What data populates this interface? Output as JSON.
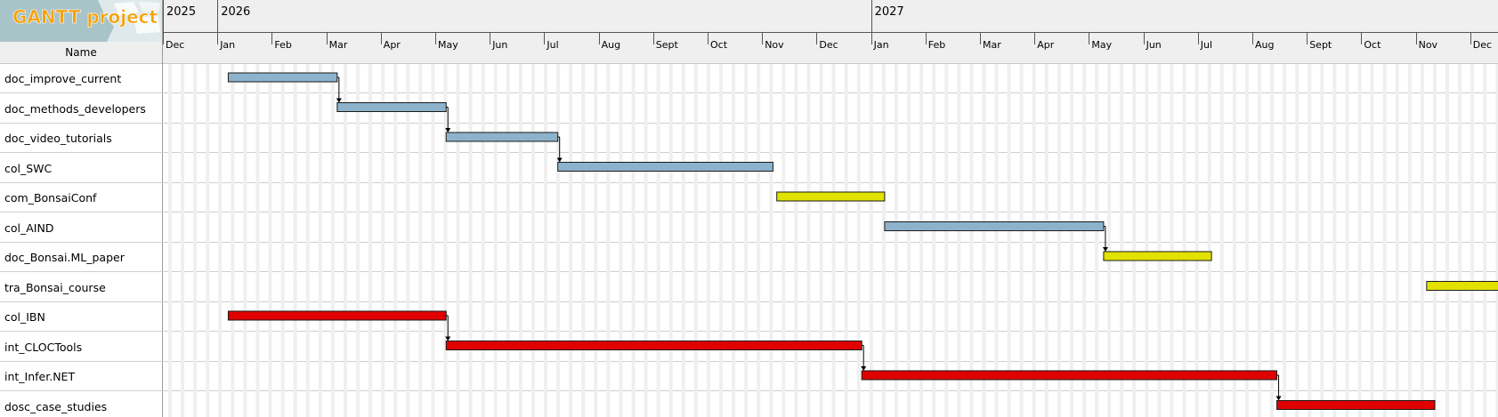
{
  "app": {
    "logo_text": "GANTT project"
  },
  "header": {
    "name_column": "Name"
  },
  "timeline": {
    "years": [
      {
        "label": "2025",
        "month_index": 0
      },
      {
        "label": "2026",
        "month_index": 1
      },
      {
        "label": "2027",
        "month_index": 13
      }
    ],
    "months": [
      "Dec",
      "Jan",
      "Feb",
      "Mar",
      "Apr",
      "May",
      "Jun",
      "Jul",
      "Aug",
      "Sept",
      "Oct",
      "Nov",
      "Dec",
      "Jan",
      "Feb",
      "Mar",
      "Apr",
      "May",
      "Jun",
      "Jul",
      "Aug",
      "Sept",
      "Oct",
      "Nov",
      "Dec"
    ]
  },
  "tasks": [
    {
      "name": "doc_improve_current",
      "start": 1.2,
      "end": 3.2,
      "type": "blue"
    },
    {
      "name": "doc_methods_developers",
      "start": 3.2,
      "end": 5.2,
      "type": "blue"
    },
    {
      "name": "doc_video_tutorials",
      "start": 5.2,
      "end": 7.25,
      "type": "blue"
    },
    {
      "name": "col_SWC",
      "start": 7.25,
      "end": 11.2,
      "type": "blue"
    },
    {
      "name": "com_BonsaiConf",
      "start": 11.27,
      "end": 13.25,
      "type": "yellow"
    },
    {
      "name": "col_AIND",
      "start": 13.25,
      "end": 17.27,
      "type": "blue"
    },
    {
      "name": "doc_Bonsai.ML_paper",
      "start": 17.27,
      "end": 19.25,
      "type": "yellow"
    },
    {
      "name": "tra_Bonsai_course",
      "start": 23.2,
      "end": 25.25,
      "type": "yellow"
    },
    {
      "name": "col_IBN",
      "start": 1.2,
      "end": 5.2,
      "type": "red"
    },
    {
      "name": "int_CLOCTools",
      "start": 5.2,
      "end": 12.83,
      "type": "red"
    },
    {
      "name": "int_Infer.NET",
      "start": 12.83,
      "end": 20.45,
      "type": "red"
    },
    {
      "name": "dosc_case_studies",
      "start": 20.45,
      "end": 23.35,
      "type": "red"
    }
  ],
  "dependencies": [
    [
      0,
      1
    ],
    [
      1,
      2
    ],
    [
      2,
      3
    ],
    [
      5,
      6
    ],
    [
      8,
      9
    ],
    [
      9,
      10
    ],
    [
      10,
      11
    ]
  ],
  "colors": {
    "blue": "#8db3cc",
    "yellow": "#e2e200",
    "red": "#e00000",
    "bar_border": "#1a1a1a",
    "weekend": "#efefef",
    "row_line": "#cfcfcf"
  }
}
